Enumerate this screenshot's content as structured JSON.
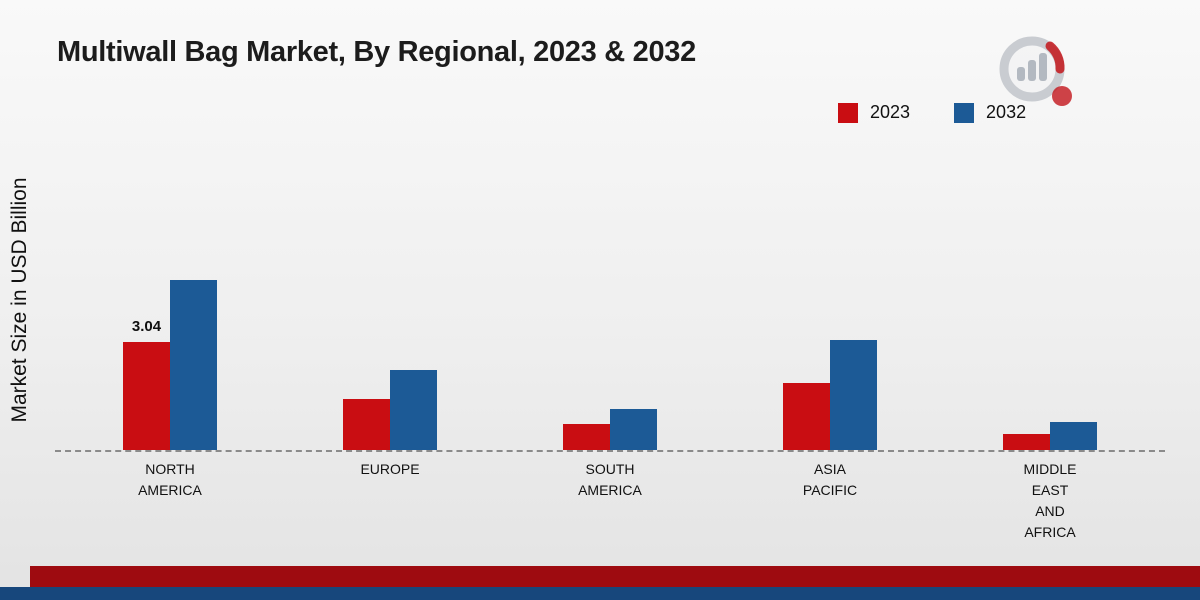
{
  "title": "Multiwall Bag Market, By Regional, 2023 & 2032",
  "legend": [
    {
      "label": "2023",
      "color": "#c90d12"
    },
    {
      "label": "2032",
      "color": "#1c5a96"
    }
  ],
  "colors": {
    "bar_2023": "#c90d12",
    "bar_2032": "#1c5a96",
    "footer_red": "#9e0b10",
    "footer_blue": "#17477c",
    "baseline": "#8b8b8b"
  },
  "chart_data": {
    "type": "bar",
    "title": "Multiwall Bag Market, By Regional, 2023 & 2032",
    "xlabel": "",
    "ylabel": "Market Size in USD Billion",
    "ylim": [
      0,
      5
    ],
    "grid": false,
    "legend_position": "top-right",
    "categories": [
      "NORTH AMERICA",
      "EUROPE",
      "SOUTH AMERICA",
      "ASIA PACIFIC",
      "MIDDLE EAST AND AFRICA"
    ],
    "category_lines": [
      [
        "NORTH",
        "AMERICA"
      ],
      [
        "EUROPE"
      ],
      [
        "SOUTH",
        "AMERICA"
      ],
      [
        "ASIA",
        "PACIFIC"
      ],
      [
        "MIDDLE",
        "EAST",
        "AND",
        "AFRICA"
      ]
    ],
    "series": [
      {
        "name": "2023",
        "color": "#c90d12",
        "values": [
          3.04,
          1.45,
          0.72,
          1.9,
          0.45
        ],
        "value_labels": [
          "3.04",
          "",
          "",
          "",
          ""
        ]
      },
      {
        "name": "2032",
        "color": "#1c5a96",
        "values": [
          4.8,
          2.25,
          1.15,
          3.1,
          0.78
        ],
        "value_labels": [
          "",
          "",
          "",
          "",
          ""
        ]
      }
    ],
    "annotations": [
      {
        "series": "2023",
        "category": "NORTH AMERICA",
        "text": "3.04"
      }
    ]
  }
}
